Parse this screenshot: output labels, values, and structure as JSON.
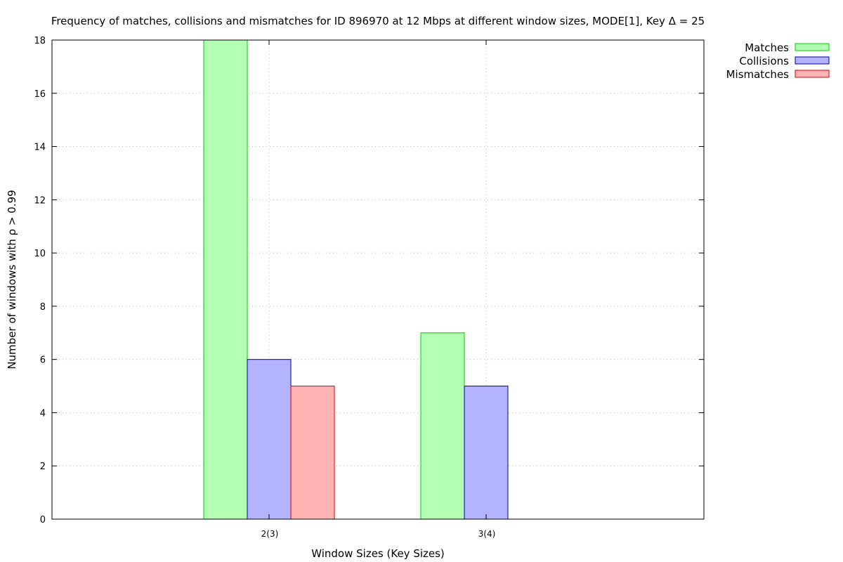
{
  "chart_data": {
    "type": "bar",
    "title": "Frequency of matches, collisions and mismatches for ID 896970 at 12 Mbps at different window sizes, MODE[1], Key Δ = 25",
    "xlabel": "Window Sizes (Key Sizes)",
    "ylabel": "Number of windows with ρ > 0.99",
    "categories": [
      "2(3)",
      "3(4)"
    ],
    "ylim": [
      0,
      18
    ],
    "yticks": [
      0,
      2,
      4,
      6,
      8,
      10,
      12,
      14,
      16,
      18
    ],
    "grid": true,
    "legend_position": "top-right, outside plot",
    "series": [
      {
        "name": "Matches",
        "values": [
          18,
          7
        ],
        "fill": "#b3ffb3",
        "stroke": "#00cc00"
      },
      {
        "name": "Collisions",
        "values": [
          6,
          5
        ],
        "fill": "#b3b3ff",
        "stroke": "#0000aa"
      },
      {
        "name": "Mismatches",
        "values": [
          5,
          0
        ],
        "fill": "#ffb3b3",
        "stroke": "#dd0000"
      }
    ]
  }
}
